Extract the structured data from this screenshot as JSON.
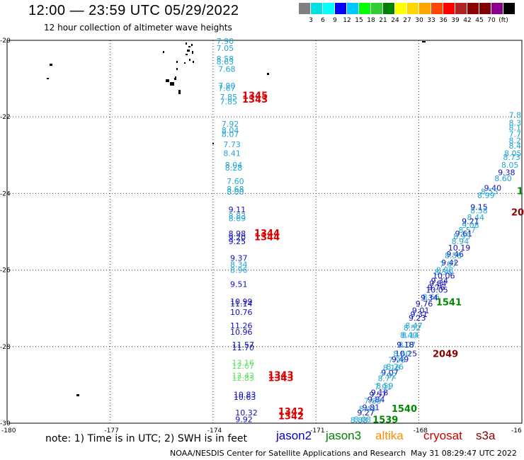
{
  "header": {
    "title": "12:00 — 23:59 UTC 05/29/2022",
    "subtitle": "12 hour collection of altimeter wave heights"
  },
  "scale": {
    "colors": [
      "#808080",
      "#00e0e0",
      "#00ffff",
      "#0000ff",
      "#00c8ff",
      "#00ff00",
      "#32cd32",
      "#008000",
      "#ffff00",
      "#ffd700",
      "#ffa500",
      "#ff4500",
      "#ff0000",
      "#b22222",
      "#8b0000",
      "#800000",
      "#8b008b",
      "#000000"
    ],
    "labels": [
      "3",
      "6",
      "9",
      "12",
      "15",
      "18",
      "21",
      "24",
      "27",
      "30",
      "33",
      "36",
      "39",
      "42",
      "45",
      "70",
      "(ft)"
    ]
  },
  "axes": {
    "lon_labels": [
      "-180",
      "-177",
      "-174",
      "-171",
      "-168",
      "-16"
    ],
    "lat_labels": [
      "-20",
      "-22",
      "-24",
      "-26",
      "-28",
      "-30"
    ]
  },
  "footer": {
    "note": "note: 1) Time is in UTC; 2) SWH is in feet",
    "satellites": [
      {
        "name": "jason2",
        "color": "#0000cc"
      },
      {
        "name": "jason3",
        "color": "#008000"
      },
      {
        "name": "altika",
        "color": "#ff8c00"
      },
      {
        "name": "cryosat",
        "color": "#cc0000"
      },
      {
        "name": "s3a",
        "color": "#8b0000"
      }
    ],
    "credit": "NOAA/NESDIS Center for Satellite Applications and Research",
    "timestamp": "May 31 08:29:47 UTC 2022"
  },
  "chart_data": {
    "type": "scatter",
    "xlim": [
      -180,
      -165
    ],
    "ylim": [
      -30,
      -20
    ],
    "colors": {
      "c": "#21a6d6",
      "b": "#1010c0",
      "g": "#66dd66",
      "G": "#008800",
      "r": "#dd0000",
      "R": "#8b0000"
    },
    "track1": [
      [
        "7.90",
        -173.9,
        -20.02,
        "c"
      ],
      [
        "7.05",
        -173.9,
        -20.2,
        "c"
      ],
      [
        "8.58",
        -173.9,
        -20.48,
        "c"
      ],
      [
        "8.63",
        -173.9,
        -20.55,
        "c"
      ],
      [
        "7.68",
        -173.85,
        -20.75,
        "c"
      ],
      [
        "7.90",
        -173.85,
        -21.18,
        "c"
      ],
      [
        "7.67",
        -173.85,
        -21.25,
        "c"
      ],
      [
        "7.85",
        -173.8,
        -21.48,
        "c"
      ],
      [
        "7.85",
        -173.8,
        -21.6,
        "c"
      ],
      [
        "1345",
        -173.15,
        -21.45,
        "r"
      ],
      [
        "1343",
        -173.15,
        -21.55,
        "r"
      ],
      [
        "7.92",
        -173.75,
        -22.18,
        "c"
      ],
      [
        "8.04",
        -173.75,
        -22.35,
        "c"
      ],
      [
        "8.07",
        -173.75,
        -22.45,
        "c"
      ],
      [
        "7.73",
        -173.7,
        -22.72,
        "c"
      ],
      [
        "8.41",
        -173.7,
        -22.95,
        "c"
      ],
      [
        "8.04",
        -173.65,
        -23.25,
        "c"
      ],
      [
        "8.28",
        -173.65,
        -23.33,
        "c"
      ],
      [
        "7.60",
        -173.6,
        -23.68,
        "c"
      ],
      [
        "8.68",
        -173.6,
        -23.88,
        "c"
      ],
      [
        "8.00",
        -173.6,
        -23.96,
        "c"
      ],
      [
        "9.11",
        -173.55,
        -24.42,
        "b"
      ],
      [
        "8.83",
        -173.55,
        -24.58,
        "c"
      ],
      [
        "8.69",
        -173.55,
        -24.65,
        "c"
      ],
      [
        "8.98",
        -173.55,
        -25.05,
        "b"
      ],
      [
        "9.20",
        -173.55,
        -25.15,
        "b"
      ],
      [
        "9.25",
        -173.55,
        -25.25,
        "b"
      ],
      [
        "1344",
        -172.8,
        -25.05,
        "r"
      ],
      [
        "1344",
        -172.8,
        -25.15,
        "r"
      ],
      [
        "9.37",
        -173.5,
        -25.68,
        "b"
      ],
      [
        "8.34",
        -173.5,
        -25.85,
        "c"
      ],
      [
        "8.96",
        -173.5,
        -26.0,
        "c"
      ],
      [
        "9.51",
        -173.5,
        -26.37,
        "b"
      ],
      [
        "10.99",
        -173.5,
        -26.82,
        "b"
      ],
      [
        "11.14",
        -173.5,
        -26.88,
        "b"
      ],
      [
        "10.76",
        -173.5,
        -27.1,
        "b"
      ],
      [
        "11.26",
        -173.5,
        -27.45,
        "b"
      ],
      [
        "10.96",
        -173.5,
        -27.62,
        "b"
      ],
      [
        "11.57",
        -173.45,
        -27.95,
        "b"
      ],
      [
        "11.70",
        -173.45,
        -28.02,
        "b"
      ],
      [
        "13.16",
        -173.45,
        -28.42,
        "g"
      ],
      [
        "12.67",
        -173.45,
        -28.5,
        "g"
      ],
      [
        "12.42",
        -173.45,
        -28.75,
        "g"
      ],
      [
        "12.83",
        -173.45,
        -28.82,
        "g"
      ],
      [
        "1343",
        -172.4,
        -28.75,
        "r"
      ],
      [
        "1343",
        -172.4,
        -28.83,
        "r"
      ],
      [
        "10.83",
        -173.4,
        -29.25,
        "b"
      ],
      [
        "10.63",
        -173.4,
        -29.32,
        "b"
      ],
      [
        "10.32",
        -173.35,
        -29.72,
        "b"
      ],
      [
        "9.92",
        -173.35,
        -29.9,
        "b"
      ],
      [
        "1342",
        -172.1,
        -29.7,
        "r"
      ],
      [
        "1342",
        -172.1,
        -29.82,
        "r"
      ]
    ],
    "track2": [
      [
        "7.8",
        -165.1,
        -21.95,
        "c"
      ],
      [
        "8.3",
        -165.1,
        -22.15,
        "c"
      ],
      [
        "8.1",
        -165.1,
        -22.28,
        "c"
      ],
      [
        "7.7",
        -165.2,
        -22.45,
        "c"
      ],
      [
        "8.2",
        -165.25,
        -22.62,
        "c"
      ],
      [
        "8.4",
        -165.3,
        -22.75,
        "c"
      ],
      [
        "8.05",
        -165.45,
        -22.95,
        "c"
      ],
      [
        "8.73",
        -165.55,
        -23.05,
        "c"
      ],
      [
        "8.05",
        -165.6,
        -23.25,
        "c"
      ],
      [
        "9.38",
        -165.7,
        -23.45,
        "b"
      ],
      [
        "8.60",
        -165.8,
        -23.6,
        "c"
      ],
      [
        "9.40",
        -166.1,
        -23.85,
        "b"
      ],
      [
        "8.55",
        -166.2,
        -23.95,
        "c"
      ],
      [
        "8.99",
        -166.3,
        -24.05,
        "c"
      ],
      [
        "9.15",
        -166.5,
        -24.35,
        "b"
      ],
      [
        "8.58",
        -166.5,
        -24.45,
        "c"
      ],
      [
        "8.44",
        -166.6,
        -24.62,
        "c"
      ],
      [
        "9.21",
        -166.75,
        -24.72,
        "b"
      ],
      [
        "9.08",
        -166.75,
        -24.82,
        "c"
      ],
      [
        "8.57",
        -166.85,
        -24.95,
        "c"
      ],
      [
        "9.61",
        -166.95,
        -25.05,
        "b"
      ],
      [
        "8.95",
        -167.0,
        -25.12,
        "c"
      ],
      [
        "8.94",
        -167.05,
        -25.25,
        "c"
      ],
      [
        "10.19",
        -167.15,
        -25.42,
        "b"
      ],
      [
        "9.46",
        -167.2,
        -25.58,
        "b"
      ],
      [
        "8.58",
        -167.25,
        -25.62,
        "c"
      ],
      [
        "9.42",
        -167.35,
        -25.8,
        "b"
      ],
      [
        "7.97",
        -167.4,
        -25.85,
        "c"
      ],
      [
        "8.98",
        -167.5,
        -26.0,
        "c"
      ],
      [
        "8.54",
        -167.55,
        -26.05,
        "c"
      ],
      [
        "10.06",
        -167.6,
        -26.15,
        "b"
      ],
      [
        "9.34",
        -167.65,
        -26.28,
        "b"
      ],
      [
        "9.84",
        -167.7,
        -26.35,
        "b"
      ],
      [
        "9.76",
        -167.75,
        -26.45,
        "b"
      ],
      [
        "10.05",
        -167.8,
        -26.52,
        "b"
      ],
      [
        "8.66",
        -167.9,
        -26.7,
        "c"
      ],
      [
        "9.34",
        -167.95,
        -26.72,
        "b"
      ],
      [
        "9.76",
        -168.1,
        -26.88,
        "b"
      ],
      [
        "9.01",
        -168.2,
        -27.05,
        "b"
      ],
      [
        "9.31",
        -168.25,
        -27.15,
        "b"
      ],
      [
        "9.23",
        -168.3,
        -27.25,
        "b"
      ],
      [
        "8.47",
        -168.4,
        -27.45,
        "c"
      ],
      [
        "8.52",
        -168.45,
        -27.5,
        "c"
      ],
      [
        "8.14",
        -168.5,
        -27.7,
        "c"
      ],
      [
        "8.40",
        -168.55,
        -27.7,
        "c"
      ],
      [
        "8.07",
        -168.6,
        -27.95,
        "c"
      ],
      [
        "9.18",
        -168.65,
        -27.95,
        "b"
      ],
      [
        "10.25",
        -168.7,
        -28.18,
        "b"
      ],
      [
        "8.60",
        -168.75,
        -28.18,
        "c"
      ],
      [
        "9.49",
        -168.8,
        -28.33,
        "b"
      ],
      [
        "7.96",
        -168.9,
        -28.35,
        "c"
      ],
      [
        "8.26",
        -168.95,
        -28.52,
        "c"
      ],
      [
        "8.16",
        -169.05,
        -28.55,
        "c"
      ],
      [
        "9.07",
        -169.1,
        -28.68,
        "b"
      ],
      [
        "7.92",
        -169.15,
        -28.75,
        "c"
      ],
      [
        "8.77",
        -169.2,
        -28.83,
        "c"
      ],
      [
        "8.59",
        -169.25,
        -29.02,
        "c"
      ],
      [
        "7.91",
        -169.3,
        -29.05,
        "c"
      ],
      [
        "9.18",
        -169.4,
        -29.2,
        "b"
      ],
      [
        "9.57",
        -169.45,
        -29.25,
        "b"
      ],
      [
        "9.84",
        -169.5,
        -29.38,
        "b"
      ],
      [
        "7.89",
        -169.6,
        -29.42,
        "c"
      ],
      [
        "9.81",
        -169.65,
        -29.58,
        "b"
      ],
      [
        "8.44",
        -169.75,
        -29.62,
        "c"
      ],
      [
        "9.27",
        -169.8,
        -29.72,
        "b"
      ],
      [
        "8.08",
        -169.9,
        -29.9,
        "c"
      ],
      [
        "8.88",
        -170.0,
        -29.92,
        "c"
      ],
      [
        "1541",
        -167.5,
        -26.85,
        "G"
      ],
      [
        "1540",
        -168.8,
        -29.63,
        "G"
      ],
      [
        "1539",
        -169.35,
        -29.92,
        "G"
      ],
      [
        "2049",
        -167.6,
        -28.2,
        "R"
      ],
      [
        "1",
        -165.1,
        -23.95,
        "G"
      ],
      [
        "20",
        -165.05,
        -24.5,
        "R"
      ]
    ]
  }
}
